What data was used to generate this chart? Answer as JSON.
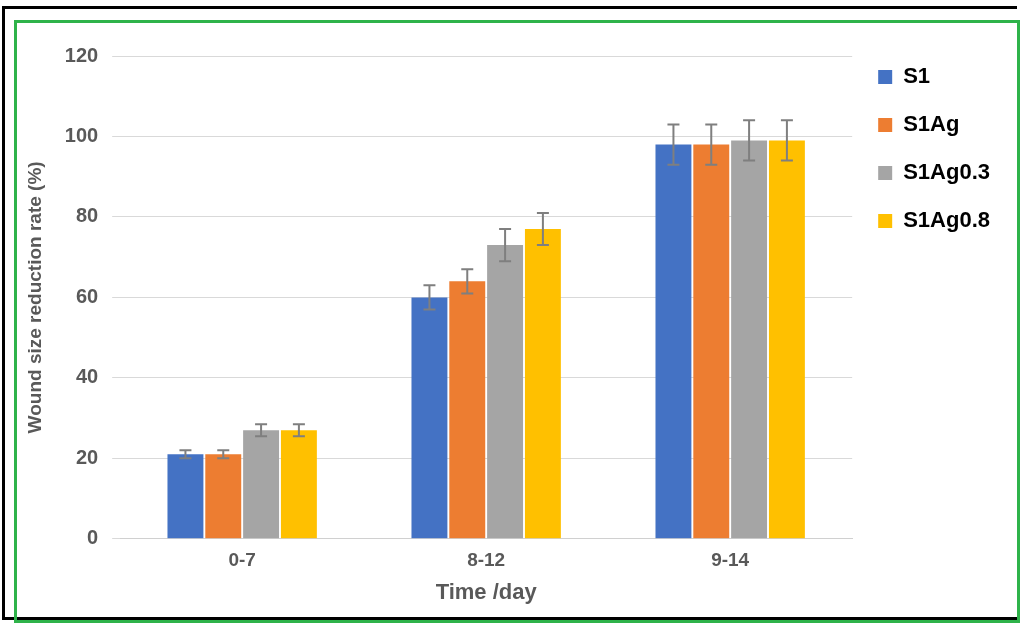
{
  "chart_data": {
    "type": "bar",
    "xlabel": "Time /day",
    "ylabel": "Wound size reduction rate (%)",
    "categories": [
      "0-7",
      "8-12",
      "9-14"
    ],
    "series": [
      {
        "name": "S1",
        "color": "#4472c4",
        "values": [
          21,
          60,
          98
        ],
        "errors": [
          1,
          3,
          5
        ]
      },
      {
        "name": "S1Ag",
        "color": "#ed7d31",
        "values": [
          21,
          64,
          98
        ],
        "errors": [
          1,
          3,
          5
        ]
      },
      {
        "name": "S1Ag0.3",
        "color": "#a5a5a5",
        "values": [
          27,
          73,
          99
        ],
        "errors": [
          1.5,
          4,
          5
        ]
      },
      {
        "name": "S1Ag0.8",
        "color": "#ffc000",
        "values": [
          27,
          77,
          99
        ],
        "errors": [
          1.5,
          4,
          5
        ]
      }
    ],
    "ylim": [
      0,
      120
    ],
    "yticks": [
      0,
      20,
      40,
      60,
      80,
      100,
      120
    ],
    "grid": "y",
    "legend": "right"
  }
}
